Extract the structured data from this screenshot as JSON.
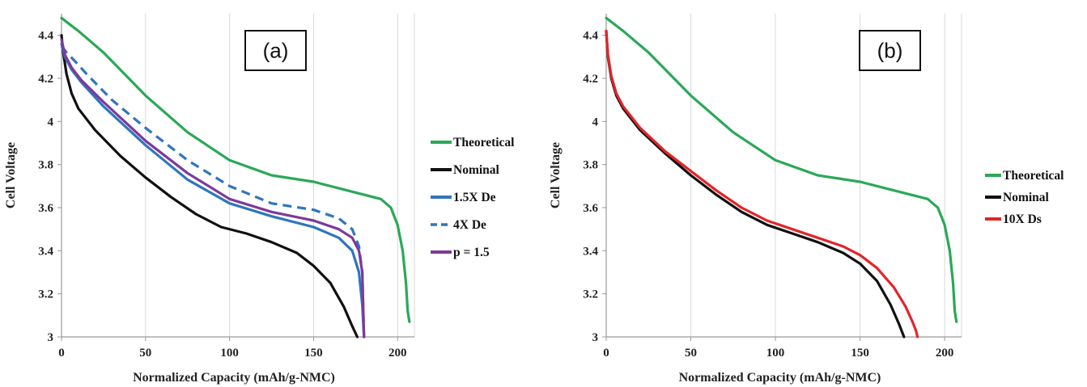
{
  "chart_data": [
    {
      "type": "line",
      "panel_label": "(a)",
      "xlabel": "Normalized Capacity (mAh/g-NMC)",
      "ylabel": "Cell Voltage",
      "xlim": [
        0,
        210
      ],
      "ylim": [
        3,
        4.5
      ],
      "x_ticks": [
        "0",
        "50",
        "100",
        "150",
        "200"
      ],
      "y_ticks": [
        "3",
        "3.2",
        "3.4",
        "3.6",
        "3.8",
        "4",
        "4.2",
        "4.4"
      ],
      "grid": "vertical",
      "legend_position": "right",
      "series": [
        {
          "name": "Theoretical",
          "color": "#2aa857",
          "dash": false,
          "x": [
            0,
            10,
            25,
            50,
            75,
            100,
            125,
            150,
            170,
            190,
            196,
            200,
            203,
            205,
            206,
            207
          ],
          "y": [
            4.48,
            4.42,
            4.32,
            4.12,
            3.95,
            3.82,
            3.75,
            3.72,
            3.68,
            3.64,
            3.6,
            3.52,
            3.4,
            3.25,
            3.12,
            3.07
          ]
        },
        {
          "name": "Nominal",
          "color": "#111111",
          "dash": false,
          "x": [
            0,
            1,
            3,
            6,
            10,
            20,
            35,
            50,
            65,
            80,
            95,
            110,
            125,
            140,
            150,
            160,
            168,
            173,
            176
          ],
          "y": [
            4.4,
            4.32,
            4.22,
            4.13,
            4.06,
            3.96,
            3.84,
            3.74,
            3.65,
            3.57,
            3.51,
            3.48,
            3.44,
            3.39,
            3.33,
            3.25,
            3.14,
            3.05,
            3.0
          ]
        },
        {
          "name": "1.5X De",
          "color": "#2f75bd",
          "dash": false,
          "x": [
            0,
            2,
            6,
            12,
            25,
            50,
            75,
            100,
            125,
            150,
            165,
            173,
            177,
            179,
            180
          ],
          "y": [
            4.36,
            4.3,
            4.24,
            4.18,
            4.07,
            3.89,
            3.73,
            3.62,
            3.56,
            3.51,
            3.46,
            3.4,
            3.3,
            3.15,
            3.0
          ]
        },
        {
          "name": "4X De",
          "color": "#2f75bd",
          "dash": true,
          "x": [
            0,
            3,
            8,
            15,
            30,
            50,
            75,
            100,
            125,
            150,
            165,
            173,
            177,
            179,
            180
          ],
          "y": [
            4.35,
            4.32,
            4.28,
            4.22,
            4.1,
            3.97,
            3.82,
            3.7,
            3.62,
            3.59,
            3.55,
            3.5,
            3.42,
            3.3,
            3.0
          ]
        },
        {
          "name": "p = 1.5",
          "color": "#7c3a9c",
          "dash": false,
          "x": [
            0,
            2,
            6,
            12,
            25,
            50,
            75,
            100,
            125,
            150,
            165,
            173,
            177,
            179,
            180
          ],
          "y": [
            4.38,
            4.31,
            4.25,
            4.19,
            4.09,
            3.91,
            3.76,
            3.64,
            3.58,
            3.54,
            3.5,
            3.46,
            3.4,
            3.3,
            3.0
          ]
        }
      ]
    },
    {
      "type": "line",
      "panel_label": "(b)",
      "xlabel": "Normalized Capacity (mAh/g-NMC)",
      "ylabel": "Cell Voltage",
      "xlim": [
        0,
        210
      ],
      "ylim": [
        3,
        4.5
      ],
      "x_ticks": [
        "0",
        "50",
        "100",
        "150",
        "200"
      ],
      "y_ticks": [
        "3",
        "3.2",
        "3.4",
        "3.6",
        "3.8",
        "4",
        "4.2",
        "4.4"
      ],
      "grid": "vertical",
      "legend_position": "right",
      "series": [
        {
          "name": "Theoretical",
          "color": "#2aa857",
          "dash": false,
          "x": [
            0,
            10,
            25,
            50,
            75,
            100,
            125,
            150,
            170,
            190,
            196,
            200,
            203,
            205,
            206,
            207
          ],
          "y": [
            4.48,
            4.42,
            4.32,
            4.12,
            3.95,
            3.82,
            3.75,
            3.72,
            3.68,
            3.64,
            3.6,
            3.52,
            3.4,
            3.25,
            3.12,
            3.07
          ]
        },
        {
          "name": "Nominal",
          "color": "#111111",
          "dash": false,
          "x": [
            0,
            1,
            3,
            6,
            10,
            20,
            35,
            50,
            65,
            80,
            95,
            110,
            125,
            140,
            150,
            160,
            168,
            173,
            176
          ],
          "y": [
            4.42,
            4.3,
            4.2,
            4.12,
            4.06,
            3.96,
            3.85,
            3.75,
            3.66,
            3.58,
            3.52,
            3.48,
            3.44,
            3.39,
            3.34,
            3.26,
            3.15,
            3.06,
            3.0
          ]
        },
        {
          "name": "10X Ds",
          "color": "#e0262a",
          "dash": false,
          "x": [
            0,
            1,
            3,
            6,
            10,
            20,
            35,
            50,
            65,
            80,
            95,
            110,
            125,
            140,
            150,
            160,
            170,
            177,
            181,
            183,
            184
          ],
          "y": [
            4.42,
            4.31,
            4.21,
            4.13,
            4.07,
            3.97,
            3.86,
            3.77,
            3.68,
            3.6,
            3.54,
            3.5,
            3.46,
            3.42,
            3.38,
            3.32,
            3.23,
            3.14,
            3.07,
            3.03,
            3.0
          ]
        }
      ]
    }
  ]
}
